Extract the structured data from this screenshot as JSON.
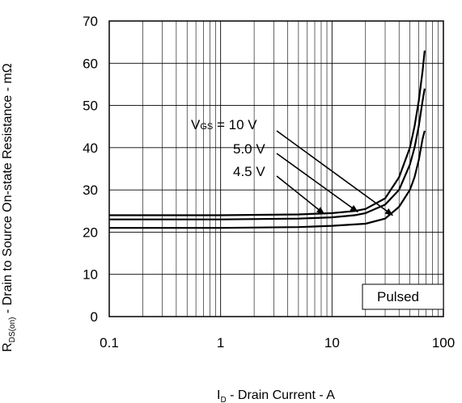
{
  "chart_data": {
    "type": "line",
    "x_scale": "log",
    "xlim": [
      0.1,
      100
    ],
    "ylim": [
      0,
      70
    ],
    "grid": true,
    "x_ticks": [
      {
        "value": 0.1,
        "label": "0.1"
      },
      {
        "value": 1,
        "label": "1"
      },
      {
        "value": 10,
        "label": "10"
      },
      {
        "value": 100,
        "label": "100"
      }
    ],
    "y_ticks": [
      {
        "value": 0,
        "label": "0"
      },
      {
        "value": 10,
        "label": "10"
      },
      {
        "value": 20,
        "label": "20"
      },
      {
        "value": 30,
        "label": "30"
      },
      {
        "value": 40,
        "label": "40"
      },
      {
        "value": 50,
        "label": "50"
      },
      {
        "value": 60,
        "label": "60"
      },
      {
        "value": 70,
        "label": "70"
      }
    ],
    "xlabel": {
      "main": "I",
      "sub": "D",
      "rest": " - Drain Current - A"
    },
    "ylabel": {
      "main": "R",
      "sub": "DS(on)",
      "rest": " - Drain to Source On-state Resistance - mΩ"
    },
    "series": [
      {
        "label": {
          "prefix": "V",
          "sub": "GS",
          "rest": " = 10 V"
        },
        "points": [
          [
            0.1,
            21
          ],
          [
            1,
            21
          ],
          [
            5,
            21.2
          ],
          [
            10,
            21.5
          ],
          [
            20,
            22
          ],
          [
            30,
            23.2
          ],
          [
            40,
            26
          ],
          [
            50,
            30
          ],
          [
            55,
            33
          ],
          [
            60,
            37
          ],
          [
            65,
            42
          ],
          [
            68,
            44
          ]
        ]
      },
      {
        "label": {
          "prefix": "",
          "sub": "",
          "rest": "5.0 V"
        },
        "points": [
          [
            0.1,
            23
          ],
          [
            1,
            23
          ],
          [
            5,
            23.2
          ],
          [
            10,
            23.5
          ],
          [
            16,
            24
          ],
          [
            20,
            24.5
          ],
          [
            30,
            26.5
          ],
          [
            40,
            30
          ],
          [
            50,
            36
          ],
          [
            55,
            40
          ],
          [
            60,
            45
          ],
          [
            65,
            51
          ],
          [
            68,
            54
          ]
        ]
      },
      {
        "label": {
          "prefix": "",
          "sub": "",
          "rest": "4.5 V"
        },
        "points": [
          [
            0.1,
            24
          ],
          [
            1,
            24
          ],
          [
            5,
            24.2
          ],
          [
            10,
            24.5
          ],
          [
            16,
            25
          ],
          [
            20,
            25.5
          ],
          [
            30,
            28
          ],
          [
            40,
            33
          ],
          [
            50,
            40
          ],
          [
            55,
            45
          ],
          [
            60,
            51
          ],
          [
            65,
            58
          ],
          [
            68,
            63
          ]
        ]
      }
    ],
    "annotations": [
      {
        "series": 0,
        "arrow_to": [
          35,
          24
        ]
      },
      {
        "series": 1,
        "arrow_to": [
          17,
          24.8
        ]
      },
      {
        "series": 2,
        "arrow_to": [
          8.5,
          24.3
        ]
      }
    ],
    "legend_box": "Pulsed"
  }
}
